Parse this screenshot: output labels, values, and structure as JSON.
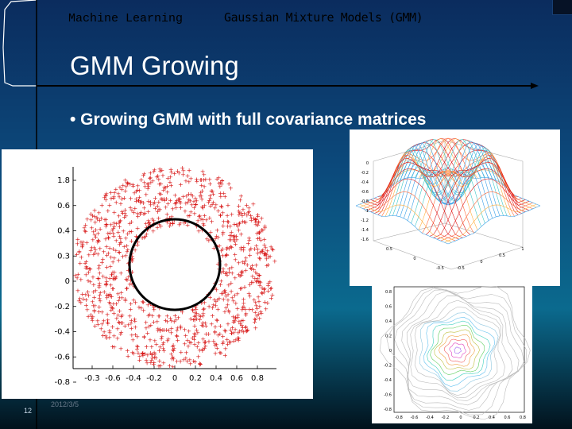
{
  "header": {
    "course": "Machine Learning",
    "topic": "Gaussian Mixture Models (GMM)"
  },
  "slide": {
    "title": "GMM Growing",
    "bullet": "• Growing GMM with full covariance matrices",
    "page_number": "12",
    "date": "2012/3/5"
  },
  "colors": {
    "background": "#0c4a7c",
    "points": "#d81818",
    "component_circle": "#000000"
  },
  "chart_data": [
    {
      "type": "scatter",
      "y_tick_labels": [
        "1.8",
        "0.6",
        "0.4",
        "0.3",
        "0",
        "-0.2",
        "-0.4",
        "-0.6",
        "-0.8"
      ],
      "x_tick_labels": [
        "-0.3",
        "-0.6",
        "-0.4",
        "-0.2",
        "0",
        "0.2",
        "0.4",
        "0.6",
        "0.8"
      ],
      "distribution": "ring",
      "ring_inner_radius": 0.42,
      "ring_outer_radius": 1.0,
      "component_circle_radius": 0.42,
      "grid": false
    },
    {
      "type": "surface",
      "z_tick_labels": [
        "0",
        "-0.2",
        "-0.4",
        "-0.6",
        "-0.8",
        "-1",
        "-1.2",
        "-1.4",
        "-1.6"
      ],
      "x_tick_labels": [
        "0.5",
        "0",
        "-0.5"
      ],
      "y_tick_labels": [
        "-0.5",
        "0",
        "0.5",
        "1"
      ],
      "grid": true
    },
    {
      "type": "contour",
      "y_tick_labels": [
        "0.8",
        "0.6",
        "0.4",
        "0.2",
        "0",
        "-0.2",
        "-0.4",
        "-0.6",
        "-0.8"
      ],
      "x_tick_labels": [
        "-0.8",
        "-0.6",
        "-0.4",
        "-0.2",
        "0",
        "0.2",
        "0.4",
        "0.6",
        "0.8"
      ],
      "grid": false
    }
  ]
}
